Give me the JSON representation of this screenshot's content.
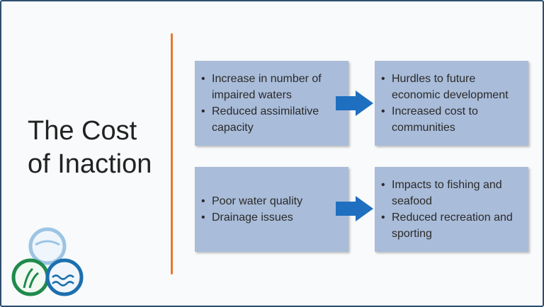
{
  "slide": {
    "title_lines": [
      "The Cost",
      "of Inaction"
    ],
    "boxes": [
      {
        "bullets": [
          "Increase in number of impaired waters",
          "Reduced assimilative capacity"
        ]
      },
      {
        "bullets": [
          "Hurdles to future economic development",
          "Increased cost to communities"
        ]
      },
      {
        "bullets": [
          "Poor water quality",
          "Drainage issues"
        ]
      },
      {
        "bullets": [
          "Impacts to fishing and seafood",
          "Reduced recreation and sporting"
        ]
      }
    ]
  }
}
